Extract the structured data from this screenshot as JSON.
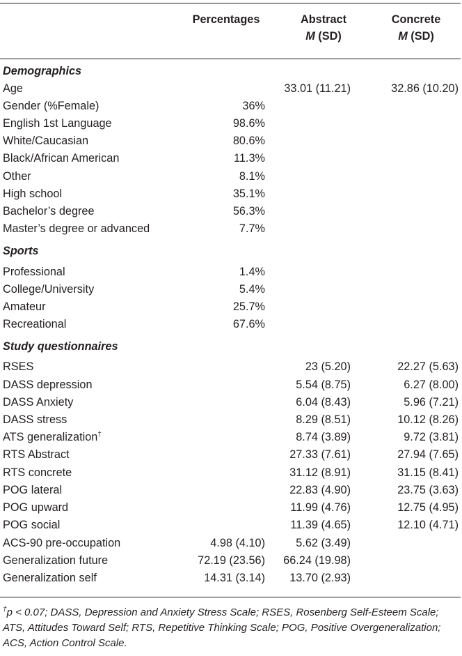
{
  "header": {
    "col1": "Percentages",
    "col2_line1": "Abstract",
    "col2_line2_m": "M",
    "col2_line2_rest": " (SD)",
    "col3_line1": "Concrete",
    "col3_line2_m": "M",
    "col3_line2_rest": " (SD)"
  },
  "sections": {
    "demographics": "Demographics",
    "sports": "Sports",
    "study": "Study questionnaires"
  },
  "rows": [
    {
      "label": "Age",
      "pct": "",
      "abs": "33.01 (11.21)",
      "con": "32.86 (10.20)"
    },
    {
      "label": "Gender (%Female)",
      "pct": "36%",
      "abs": "",
      "con": ""
    },
    {
      "label": "English 1st Language",
      "pct": "98.6%",
      "abs": "",
      "con": ""
    },
    {
      "label": "White/Caucasian",
      "pct": "80.6%",
      "abs": "",
      "con": ""
    },
    {
      "label": "Black/African American",
      "pct": "11.3%",
      "abs": "",
      "con": ""
    },
    {
      "label": "Other",
      "pct": "8.1%",
      "abs": "",
      "con": ""
    },
    {
      "label": "High school",
      "pct": "35.1%",
      "abs": "",
      "con": ""
    },
    {
      "label": "Bachelor’s degree",
      "pct": "56.3%",
      "abs": "",
      "con": ""
    },
    {
      "label": "Master’s degree or advanced",
      "pct": "7.7%",
      "abs": "",
      "con": ""
    },
    {
      "label": "Professional",
      "pct": "1.4%",
      "abs": "",
      "con": ""
    },
    {
      "label": "College/University",
      "pct": "5.4%",
      "abs": "",
      "con": ""
    },
    {
      "label": "Amateur",
      "pct": "25.7%",
      "abs": "",
      "con": ""
    },
    {
      "label": "Recreational",
      "pct": "67.6%",
      "abs": "",
      "con": ""
    },
    {
      "label": "RSES",
      "pct": "",
      "abs": "23 (5.20)",
      "con": "22.27 (5.63)"
    },
    {
      "label": "DASS depression",
      "pct": "",
      "abs": "5.54 (8.75)",
      "con": "6.27 (8.00)"
    },
    {
      "label": "DASS Anxiety",
      "pct": "",
      "abs": "6.04 (8.43)",
      "con": "5.96 (7.21)"
    },
    {
      "label": "DASS stress",
      "pct": "",
      "abs": "8.29 (8.51)",
      "con": "10.12 (8.26)"
    },
    {
      "label": "ATS generalization",
      "sup": "†",
      "pct": "",
      "abs": "8.74 (3.89)",
      "con": "9.72 (3.81)"
    },
    {
      "label": "RTS Abstract",
      "pct": "",
      "abs": "27.33 (7.61)",
      "con": "27.94 (7.65)"
    },
    {
      "label": "RTS concrete",
      "pct": "",
      "abs": "31.12 (8.91)",
      "con": "31.15 (8.41)"
    },
    {
      "label": "POG lateral",
      "pct": "",
      "abs": "22.83 (4.90)",
      "con": "23.75 (3.63)"
    },
    {
      "label": "POG upward",
      "pct": "",
      "abs": "11.99 (4.76)",
      "con": "12.75 (4.95)"
    },
    {
      "label": "POG social",
      "pct": "",
      "abs": "11.39 (4.65)",
      "con": "12.10 (4.71)"
    },
    {
      "label": "ACS-90 pre-occupation",
      "pct": "4.98 (4.10)",
      "abs": "5.62 (3.49)",
      "con": ""
    },
    {
      "label": "Generalization future",
      "pct": "72.19 (23.56)",
      "abs": "66.24 (19.98)",
      "con": ""
    },
    {
      "label": "Generalization self",
      "pct": "14.31 (3.14)",
      "abs": "13.70 (2.93)",
      "con": ""
    }
  ],
  "footnote": {
    "dagger": "†",
    "text": "p < 0.07; DASS, Depression and Anxiety Stress Scale; RSES, Rosenberg Self-Esteem Scale; ATS, Attitudes Toward Self; RTS, Repetitive Thinking Scale; POG, Positive Overgeneralization; ACS, Action Control Scale."
  }
}
